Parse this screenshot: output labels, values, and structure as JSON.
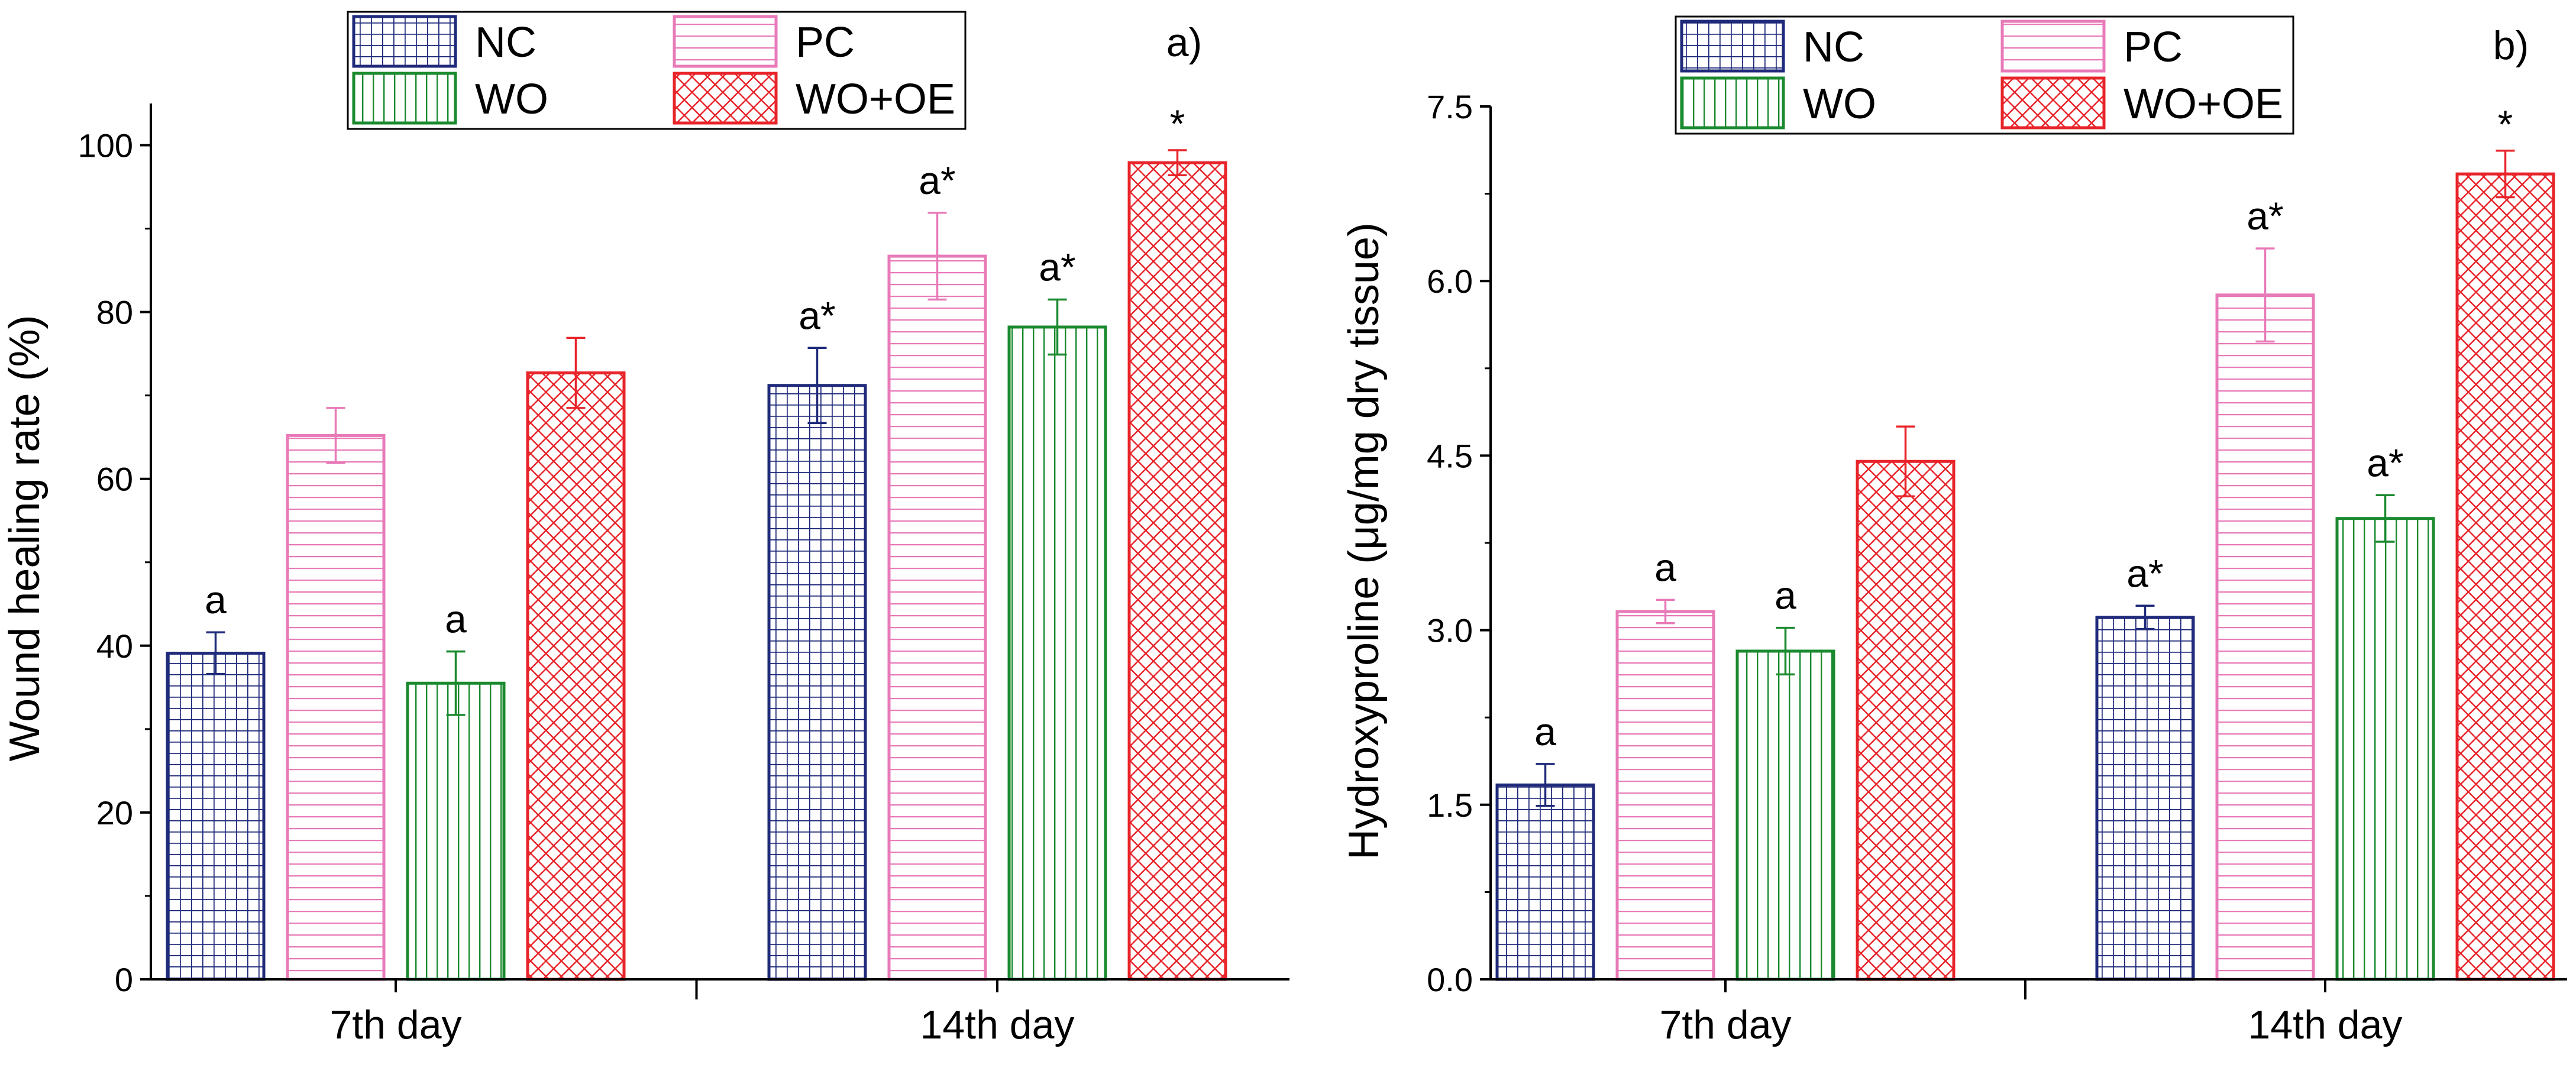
{
  "chart_data": [
    {
      "type": "bar",
      "panel_label": "a)",
      "title": "",
      "xlabel": "",
      "ylabel": "Wound healing rate (%)",
      "ylim": [
        0,
        105
      ],
      "yticks": [
        0,
        20,
        40,
        60,
        80,
        100
      ],
      "ytick_labels": [
        "0",
        "20",
        "40",
        "60",
        "80",
        "100"
      ],
      "categories": [
        "7th day",
        "14th day"
      ],
      "series": [
        {
          "name": "NC",
          "values": [
            39.1,
            71.2
          ],
          "errors": [
            2.5,
            4.5
          ],
          "annotations": [
            "a",
            "a*"
          ]
        },
        {
          "name": "PC",
          "values": [
            65.2,
            86.7
          ],
          "errors": [
            3.3,
            5.2
          ],
          "annotations": [
            "",
            "a*"
          ]
        },
        {
          "name": "WO",
          "values": [
            35.5,
            78.2
          ],
          "errors": [
            3.8,
            3.3
          ],
          "annotations": [
            "a",
            "a*"
          ]
        },
        {
          "name": "WO+OE",
          "values": [
            72.7,
            97.9
          ],
          "errors": [
            4.2,
            1.5
          ],
          "annotations": [
            "",
            "*"
          ]
        }
      ],
      "legend_position": "top-center",
      "grid": false
    },
    {
      "type": "bar",
      "panel_label": "b)",
      "title": "",
      "xlabel": "",
      "ylabel": "Hydroxyproline (μg/mg dry tissue)",
      "ylim": [
        0,
        7.5
      ],
      "yticks": [
        0,
        1.5,
        3.0,
        4.5,
        6.0,
        7.5
      ],
      "ytick_labels": [
        "0.0",
        "1.5",
        "3.0",
        "4.5",
        "6.0",
        "7.5"
      ],
      "categories": [
        "7th day",
        "14th day"
      ],
      "series": [
        {
          "name": "NC",
          "values": [
            1.67,
            3.11
          ],
          "errors": [
            0.18,
            0.1
          ],
          "annotations": [
            "a",
            "a*"
          ]
        },
        {
          "name": "PC",
          "values": [
            3.16,
            5.88
          ],
          "errors": [
            0.1,
            0.4
          ],
          "annotations": [
            "a",
            "a*"
          ]
        },
        {
          "name": "WO",
          "values": [
            2.82,
            3.96
          ],
          "errors": [
            0.2,
            0.2
          ],
          "annotations": [
            "a",
            "a*"
          ]
        },
        {
          "name": "WO+OE",
          "values": [
            4.45,
            6.92
          ],
          "errors": [
            0.3,
            0.2
          ],
          "annotations": [
            "",
            "*"
          ]
        }
      ],
      "legend_position": "top-center",
      "grid": false
    }
  ],
  "series_styles": {
    "NC": {
      "color": "#1f2a7a",
      "pattern": "grid"
    },
    "PC": {
      "color": "#e87ab8",
      "pattern": "horizontal-lines"
    },
    "WO": {
      "color": "#1a8a2e",
      "pattern": "vertical-lines"
    },
    "WO+OE": {
      "color": "#e8242a",
      "pattern": "crosshatch"
    }
  }
}
